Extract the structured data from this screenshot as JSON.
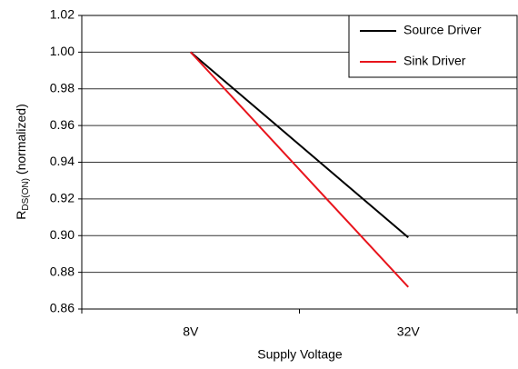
{
  "chart_data": {
    "type": "line",
    "x_label": "Supply Voltage",
    "y_label": {
      "main": "R",
      "subscript": "DS(ON)",
      "suffix": "(normalized)"
    },
    "categories": [
      "8V",
      "32V"
    ],
    "series": [
      {
        "name": "Source Driver",
        "color": "#000000",
        "values": [
          1.0,
          0.899
        ]
      },
      {
        "name": "Sink Driver",
        "color": "#e8141c",
        "values": [
          1.0,
          0.872
        ]
      }
    ],
    "ylim": [
      0.86,
      1.02
    ],
    "yticks": [
      0.86,
      0.88,
      {
        "value": 0.9,
        "label": "0.90"
      },
      0.92,
      0.94,
      0.96,
      0.98,
      {
        "value": 1.0,
        "label": "1.00"
      },
      1.02
    ],
    "grid": true,
    "legend": "upper right"
  }
}
